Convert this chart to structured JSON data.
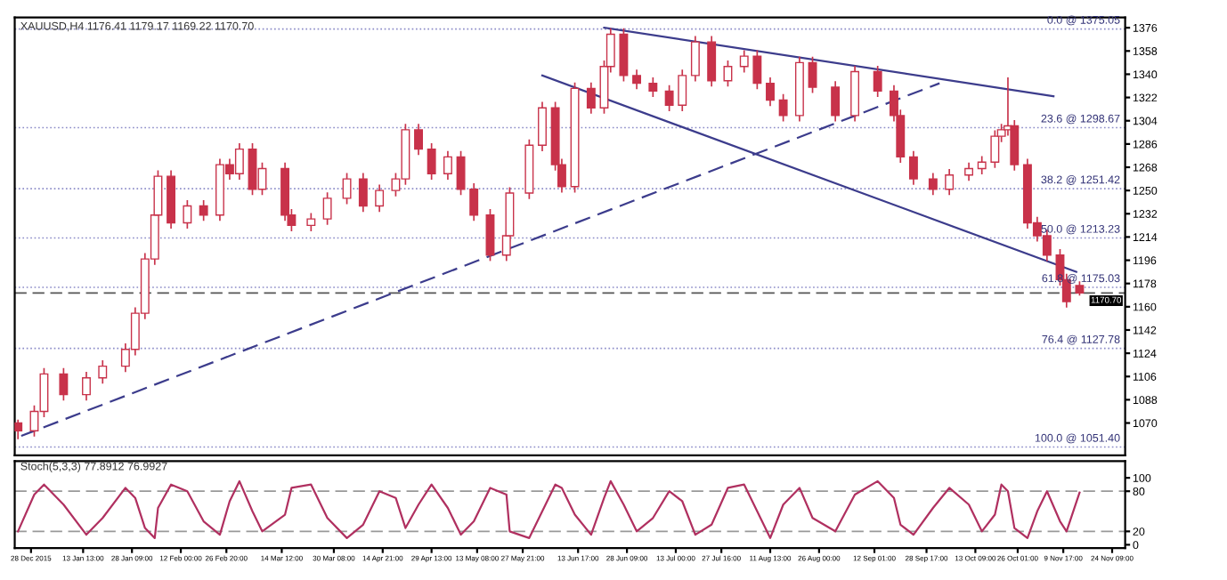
{
  "chart_data": [
    {
      "type": "candlestick",
      "title": "XAUUSD,H4 1176.41 1179.17 1169.22 1170.70",
      "series": [
        {
          "type": "candlestick",
          "color": "#c8324a",
          "x": [
            "2015-12-24",
            "2015-12-29",
            "2016-01-01",
            "2016-01-07",
            "2016-01-14",
            "2016-01-19",
            "2016-01-26",
            "2016-01-29",
            "2016-02-01",
            "2016-02-04",
            "2016-02-05",
            "2016-02-09",
            "2016-02-14",
            "2016-02-19",
            "2016-02-24",
            "2016-02-27",
            "2016-03-01",
            "2016-03-05",
            "2016-03-08",
            "2016-03-15",
            "2016-03-17",
            "2016-03-23",
            "2016-03-28",
            "2016-04-03",
            "2016-04-08",
            "2016-04-13",
            "2016-04-18",
            "2016-04-21",
            "2016-04-25",
            "2016-04-29",
            "2016-05-04",
            "2016-05-08",
            "2016-05-12",
            "2016-05-17",
            "2016-05-22",
            "2016-05-23",
            "2016-05-29",
            "2016-06-02",
            "2016-06-06",
            "2016-06-08",
            "2016-06-12",
            "2016-06-17",
            "2016-06-21",
            "2016-06-23",
            "2016-06-27",
            "2016-07-01",
            "2016-07-06",
            "2016-07-11",
            "2016-07-15",
            "2016-07-19",
            "2016-07-24",
            "2016-07-29",
            "2016-08-03",
            "2016-08-07",
            "2016-08-11",
            "2016-08-15",
            "2016-08-20",
            "2016-08-24",
            "2016-08-31",
            "2016-09-06",
            "2016-09-13",
            "2016-09-18",
            "2016-09-20",
            "2016-09-24",
            "2016-09-30",
            "2016-10-05",
            "2016-10-11",
            "2016-10-15",
            "2016-10-19",
            "2016-10-21",
            "2016-10-23",
            "2016-10-25",
            "2016-10-29",
            "2016-11-01",
            "2016-11-04",
            "2016-11-08",
            "2016-11-10",
            "2016-11-14"
          ],
          "ohlc": [
            [
              1070,
              1072,
              1058,
              1064
            ],
            [
              1064,
              1083,
              1060,
              1079
            ],
            [
              1079,
              1112,
              1075,
              1108
            ],
            [
              1108,
              1112,
              1088,
              1092
            ],
            [
              1092,
              1109,
              1088,
              1105
            ],
            [
              1105,
              1118,
              1101,
              1114
            ],
            [
              1114,
              1131,
              1110,
              1127
            ],
            [
              1127,
              1159,
              1123,
              1155
            ],
            [
              1155,
              1201,
              1151,
              1197
            ],
            [
              1197,
              1235,
              1193,
              1231
            ],
            [
              1231,
              1265,
              1227,
              1261
            ],
            [
              1261,
              1265,
              1221,
              1225
            ],
            [
              1225,
              1242,
              1221,
              1238
            ],
            [
              1238,
              1242,
              1227,
              1231
            ],
            [
              1231,
              1274,
              1227,
              1270
            ],
            [
              1270,
              1274,
              1259,
              1263
            ],
            [
              1263,
              1286,
              1259,
              1282
            ],
            [
              1282,
              1286,
              1247,
              1251
            ],
            [
              1251,
              1271,
              1247,
              1267
            ],
            [
              1267,
              1271,
              1227,
              1231
            ],
            [
              1231,
              1235,
              1219,
              1223
            ],
            [
              1223,
              1232,
              1219,
              1228
            ],
            [
              1228,
              1248,
              1224,
              1244
            ],
            [
              1244,
              1263,
              1240,
              1259
            ],
            [
              1259,
              1263,
              1234,
              1238
            ],
            [
              1238,
              1254,
              1234,
              1250
            ],
            [
              1250,
              1263,
              1246,
              1259
            ],
            [
              1259,
              1301,
              1255,
              1297
            ],
            [
              1297,
              1301,
              1278,
              1282
            ],
            [
              1282,
              1286,
              1259,
              1263
            ],
            [
              1263,
              1280,
              1259,
              1276
            ],
            [
              1276,
              1280,
              1247,
              1251
            ],
            [
              1251,
              1255,
              1227,
              1231
            ],
            [
              1231,
              1235,
              1196,
              1200
            ],
            [
              1200,
              1219,
              1196,
              1215
            ],
            [
              1215,
              1252,
              1211,
              1248
            ],
            [
              1248,
              1289,
              1244,
              1285
            ],
            [
              1285,
              1318,
              1281,
              1314
            ],
            [
              1314,
              1318,
              1266,
              1270
            ],
            [
              1270,
              1274,
              1249,
              1253
            ],
            [
              1253,
              1333,
              1249,
              1329
            ],
            [
              1329,
              1333,
              1310,
              1314
            ],
            [
              1314,
              1350,
              1310,
              1346
            ],
            [
              1346,
              1375,
              1342,
              1371
            ],
            [
              1371,
              1375,
              1335,
              1339
            ],
            [
              1339,
              1343,
              1329,
              1333
            ],
            [
              1333,
              1337,
              1323,
              1327
            ],
            [
              1327,
              1331,
              1312,
              1316
            ],
            [
              1316,
              1343,
              1312,
              1339
            ],
            [
              1339,
              1369,
              1335,
              1365
            ],
            [
              1365,
              1369,
              1331,
              1335
            ],
            [
              1335,
              1350,
              1331,
              1346
            ],
            [
              1346,
              1358,
              1342,
              1354
            ],
            [
              1354,
              1358,
              1329,
              1333
            ],
            [
              1333,
              1337,
              1316,
              1320
            ],
            [
              1320,
              1324,
              1304,
              1308
            ],
            [
              1308,
              1353,
              1304,
              1349
            ],
            [
              1349,
              1353,
              1326,
              1330
            ],
            [
              1330,
              1334,
              1304,
              1308
            ],
            [
              1308,
              1346,
              1304,
              1342
            ],
            [
              1342,
              1346,
              1323,
              1327
            ],
            [
              1327,
              1331,
              1304,
              1308
            ],
            [
              1308,
              1312,
              1272,
              1276
            ],
            [
              1276,
              1280,
              1255,
              1259
            ],
            [
              1259,
              1263,
              1247,
              1251
            ],
            [
              1251,
              1266,
              1247,
              1262
            ],
            [
              1262,
              1271,
              1258,
              1267
            ],
            [
              1267,
              1276,
              1263,
              1272
            ],
            [
              1272,
              1296,
              1268,
              1292
            ],
            [
              1292,
              1301,
              1288,
              1297
            ],
            [
              1297,
              1337,
              1293,
              1300
            ],
            [
              1300,
              1304,
              1266,
              1270
            ],
            [
              1270,
              1274,
              1221,
              1225
            ],
            [
              1225,
              1229,
              1211,
              1215
            ],
            [
              1215,
              1219,
              1196,
              1200
            ],
            [
              1200,
              1204,
              1177,
              1181
            ],
            [
              1181,
              1185,
              1160,
              1164
            ],
            [
              1176.41,
              1179.17,
              1169.22,
              1170.7
            ]
          ]
        },
        {
          "type": "line",
          "color": "#3c3c8c",
          "line_style": "solid",
          "x": [
            "2016-06-21",
            "2016-11-06"
          ],
          "values": [
            1376,
            1323
          ]
        },
        {
          "type": "line",
          "color": "#3c3c8c",
          "line_style": "solid",
          "x": [
            "2016-06-02",
            "2016-11-13"
          ],
          "values": [
            1339,
            1187
          ]
        },
        {
          "type": "line",
          "color": "#3c3c8c",
          "line_style": "dashed",
          "x": [
            "2015-12-25",
            "2016-10-02"
          ],
          "values": [
            1060,
            1333
          ]
        }
      ],
      "xlim": [
        "2015-12-23",
        "2016-11-28"
      ],
      "ylim": [
        1045,
        1384
      ],
      "yticks": [
        1376,
        1358,
        1340,
        1322,
        1304,
        1286,
        1268,
        1250,
        1232,
        1214,
        1196,
        1178,
        1160,
        1142,
        1124,
        1106,
        1088,
        1070
      ],
      "tick_labels": "y",
      "ref_lines": [
        {
          "axis": "y",
          "value": 1375.05,
          "label": "0.0 @ 1375.05",
          "color": "#8c8cc8",
          "line_style": "dotted"
        },
        {
          "axis": "y",
          "value": 1298.67,
          "label": "23.6 @ 1298.67",
          "color": "#8c8cc8",
          "line_style": "dotted"
        },
        {
          "axis": "y",
          "value": 1251.42,
          "label": "38.2 @ 1251.42",
          "color": "#8c8cc8",
          "line_style": "dotted"
        },
        {
          "axis": "y",
          "value": 1213.23,
          "label": "50.0 @ 1213.23",
          "color": "#8c8cc8",
          "line_style": "dotted"
        },
        {
          "axis": "y",
          "value": 1175.03,
          "label": "61.8 @ 1175.03",
          "color": "#8c8cc8",
          "line_style": "dotted"
        },
        {
          "axis": "y",
          "value": 1127.78,
          "label": "76.4 @ 1127.78",
          "color": "#8c8cc8",
          "line_style": "dotted"
        },
        {
          "axis": "y",
          "value": 1051.4,
          "label": "100.0 @ 1051.40",
          "color": "#8c8cc8",
          "line_style": "dotted"
        },
        {
          "axis": "y",
          "value": 1170.7,
          "label": "1170.70",
          "color": "#555555",
          "line_style": "dashed"
        }
      ],
      "legend": false
    },
    {
      "type": "line",
      "title": "Stoch(5,3,3) 77.8912 76.9927",
      "series": [
        {
          "color": "#b03060",
          "x": [
            "2015-12-24",
            "2015-12-29",
            "2016-01-01",
            "2016-01-07",
            "2016-01-14",
            "2016-01-19",
            "2016-01-26",
            "2016-01-29",
            "2016-02-01",
            "2016-02-04",
            "2016-02-05",
            "2016-02-09",
            "2016-02-14",
            "2016-02-19",
            "2016-02-24",
            "2016-02-27",
            "2016-03-01",
            "2016-03-05",
            "2016-03-08",
            "2016-03-15",
            "2016-03-17",
            "2016-03-23",
            "2016-03-28",
            "2016-04-03",
            "2016-04-08",
            "2016-04-13",
            "2016-04-18",
            "2016-04-21",
            "2016-04-25",
            "2016-04-29",
            "2016-05-04",
            "2016-05-08",
            "2016-05-12",
            "2016-05-17",
            "2016-05-22",
            "2016-05-23",
            "2016-05-29",
            "2016-06-02",
            "2016-06-06",
            "2016-06-08",
            "2016-06-12",
            "2016-06-17",
            "2016-06-21",
            "2016-06-23",
            "2016-06-27",
            "2016-07-01",
            "2016-07-06",
            "2016-07-11",
            "2016-07-15",
            "2016-07-19",
            "2016-07-24",
            "2016-07-29",
            "2016-08-03",
            "2016-08-07",
            "2016-08-11",
            "2016-08-15",
            "2016-08-20",
            "2016-08-24",
            "2016-08-31",
            "2016-09-06",
            "2016-09-13",
            "2016-09-18",
            "2016-09-20",
            "2016-09-24",
            "2016-09-30",
            "2016-10-05",
            "2016-10-11",
            "2016-10-15",
            "2016-10-19",
            "2016-10-21",
            "2016-10-23",
            "2016-10-25",
            "2016-10-29",
            "2016-11-01",
            "2016-11-04",
            "2016-11-08",
            "2016-11-10",
            "2016-11-14"
          ],
          "values": [
            20,
            75,
            90,
            60,
            15,
            40,
            85,
            70,
            25,
            10,
            55,
            90,
            80,
            35,
            15,
            65,
            95,
            50,
            20,
            45,
            85,
            90,
            40,
            10,
            30,
            80,
            70,
            25,
            60,
            90,
            55,
            15,
            35,
            85,
            75,
            20,
            10,
            50,
            90,
            85,
            45,
            15,
            70,
            95,
            60,
            20,
            40,
            80,
            65,
            15,
            30,
            85,
            90,
            50,
            10,
            60,
            85,
            40,
            20,
            75,
            95,
            70,
            30,
            15,
            55,
            85,
            60,
            20,
            45,
            90,
            80,
            25,
            10,
            50,
            80,
            35,
            20,
            78
          ]
        }
      ],
      "xlim": [
        "2015-12-23",
        "2016-11-28"
      ],
      "ylim": [
        -5,
        125
      ],
      "yticks": [
        0,
        20,
        80,
        100
      ],
      "xticks": [
        {
          "value": "2015-12-28",
          "label": "28 Dec 2015"
        },
        {
          "value": "2016-01-13",
          "label": "13 Jan 13:00"
        },
        {
          "value": "2016-01-28",
          "label": "28 Jan 09:00"
        },
        {
          "value": "2016-02-12",
          "label": "12 Feb 00:00"
        },
        {
          "value": "2016-02-26",
          "label": "26 Feb 20:00"
        },
        {
          "value": "2016-03-14",
          "label": "14 Mar 12:00"
        },
        {
          "value": "2016-03-30",
          "label": "30 Mar 08:00"
        },
        {
          "value": "2016-04-14",
          "label": "14 Apr 21:00"
        },
        {
          "value": "2016-04-29",
          "label": "29 Apr 13:00"
        },
        {
          "value": "2016-05-13",
          "label": "13 May 08:00"
        },
        {
          "value": "2016-05-27",
          "label": "27 May 21:00"
        },
        {
          "value": "2016-06-13",
          "label": "13 Jun 17:00"
        },
        {
          "value": "2016-06-28",
          "label": "28 Jun 09:00"
        },
        {
          "value": "2016-07-13",
          "label": "13 Jul 00:00"
        },
        {
          "value": "2016-07-27",
          "label": "27 Jul 16:00"
        },
        {
          "value": "2016-08-11",
          "label": "11 Aug 13:00"
        },
        {
          "value": "2016-08-26",
          "label": "26 Aug 00:00"
        },
        {
          "value": "2016-09-12",
          "label": "12 Sep 01:00"
        },
        {
          "value": "2016-09-28",
          "label": "28 Sep 17:00"
        },
        {
          "value": "2016-10-13",
          "label": "13 Oct 09:00"
        },
        {
          "value": "2016-10-26",
          "label": "26 Oct 01:00"
        },
        {
          "value": "2016-11-09",
          "label": "9 Nov 17:00"
        },
        {
          "value": "2016-11-24",
          "label": "24 Nov 09:00"
        }
      ],
      "ref_lines": [
        {
          "axis": "y",
          "value": 20,
          "color": "#999999",
          "line_style": "dashed"
        },
        {
          "axis": "y",
          "value": 80,
          "color": "#999999",
          "line_style": "dashed"
        }
      ],
      "legend": false
    }
  ]
}
